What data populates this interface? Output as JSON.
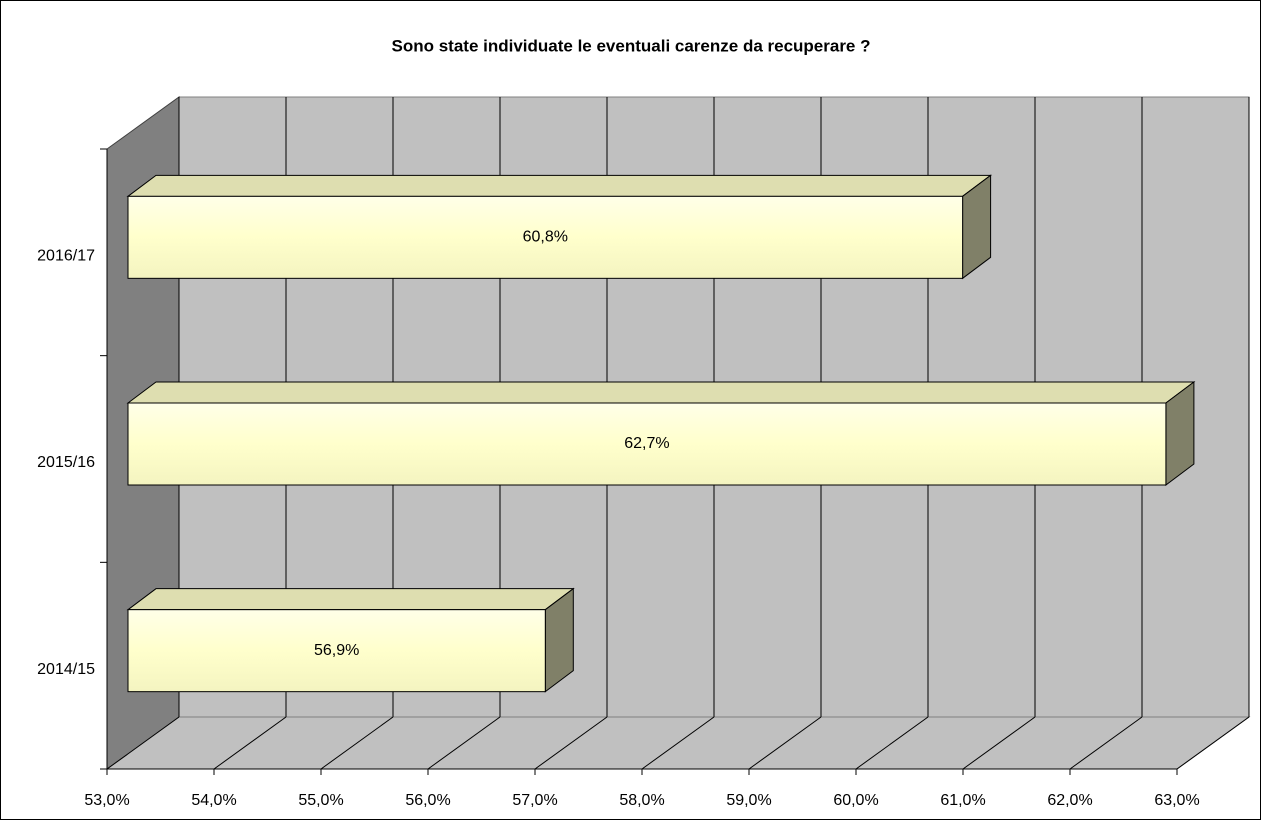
{
  "chart_data": {
    "type": "bar3d_horizontal",
    "title": "Sono state individuate le eventuali carenze da recuperare ?",
    "categories": [
      "2014/15",
      "2015/16",
      "2016/17"
    ],
    "values": [
      56.9,
      62.7,
      60.8
    ],
    "value_labels": [
      "56,9%",
      "62,7%",
      "60,8%"
    ],
    "color": "#ffffcc",
    "xlim": [
      53,
      63
    ],
    "xticks": [
      {
        "value": 53,
        "label": "53,0%"
      },
      {
        "value": 54,
        "label": "54,0%"
      },
      {
        "value": 55,
        "label": "55,0%"
      },
      {
        "value": 56,
        "label": "56,0%"
      },
      {
        "value": 57,
        "label": "57,0%"
      },
      {
        "value": 58,
        "label": "58,0%"
      },
      {
        "value": 59,
        "label": "59,0%"
      },
      {
        "value": 60,
        "label": "60,0%"
      },
      {
        "value": 61,
        "label": "61,0%"
      },
      {
        "value": 62,
        "label": "62,0%"
      },
      {
        "value": 63,
        "label": "63,0%"
      }
    ],
    "grid": true
  }
}
